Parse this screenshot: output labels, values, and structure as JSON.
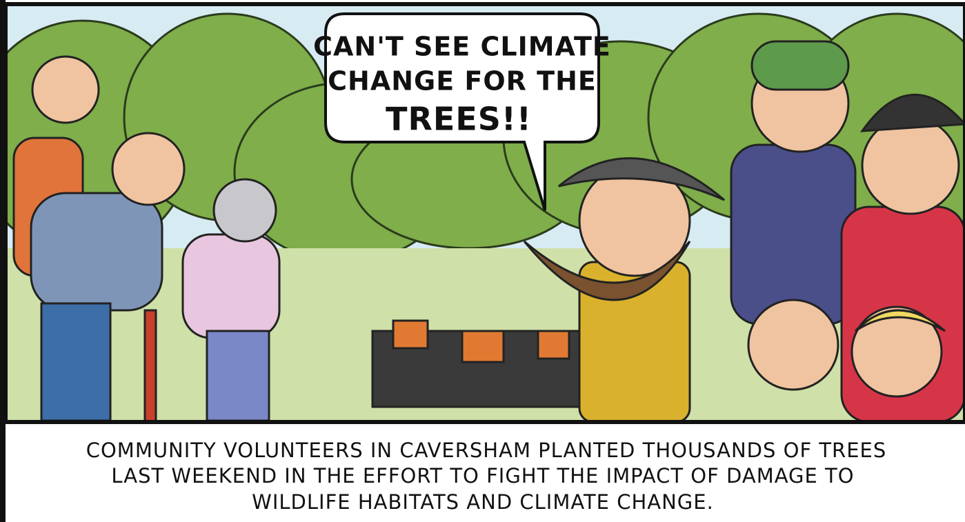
{
  "speech_bubble": {
    "lines": [
      "CAN'T SEE CLIMATE",
      "CHANGE FOR THE",
      "TREES!!"
    ]
  },
  "caption": {
    "lines": [
      "COMMUNITY VOLUNTEERS IN CAVERSHAM PLANTED THOUSANDS OF TREES",
      "LAST WEEKEND IN THE EFFORT TO FIGHT THE IMPACT OF DAMAGE TO",
      "WILDLIFE HABITATS AND CLIMATE CHANGE."
    ]
  }
}
